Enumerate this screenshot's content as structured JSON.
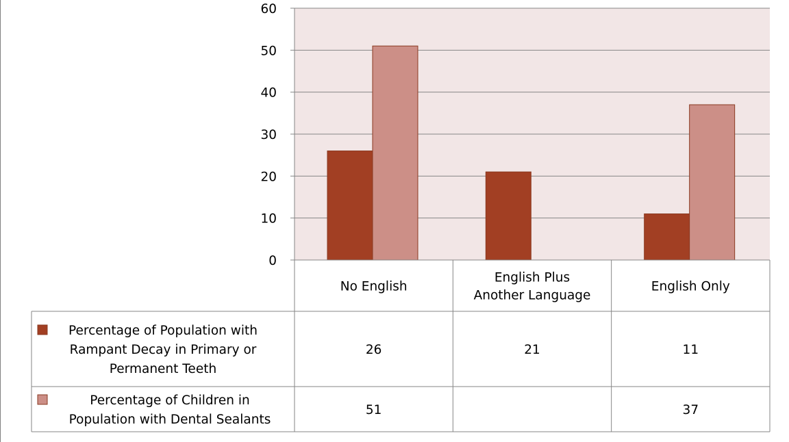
{
  "chart_data": {
    "type": "bar",
    "categories": [
      "No English",
      "English Plus Another Language",
      "English Only"
    ],
    "category_lines": [
      [
        "No English"
      ],
      [
        "English Plus",
        "Another Language"
      ],
      [
        "English Only"
      ]
    ],
    "series": [
      {
        "name": "Percentage of Population with Rampant Decay in Primary or Permanent Teeth",
        "name_lines": [
          "Percentage of Population with",
          "Rampant Decay in Primary or",
          "Permanent Teeth"
        ],
        "values": [
          26,
          21,
          11
        ],
        "labels": [
          "26",
          "21",
          "11"
        ],
        "color": "#A23F23"
      },
      {
        "name": "Percentage of Children in Population with Dental Sealants",
        "name_lines": [
          "Percentage of Children in",
          "Population with Dental Sealants"
        ],
        "values": [
          51,
          null,
          37
        ],
        "labels": [
          "51",
          "",
          "37"
        ],
        "color": "#CC8F87"
      }
    ],
    "ylim": [
      0,
      60
    ],
    "yticks": [
      "0",
      "10",
      "20",
      "30",
      "40",
      "50",
      "60"
    ],
    "grid": true,
    "plot_background": "#F2E6E6",
    "legend": "data table",
    "title": "",
    "xlabel": "",
    "ylabel": ""
  }
}
